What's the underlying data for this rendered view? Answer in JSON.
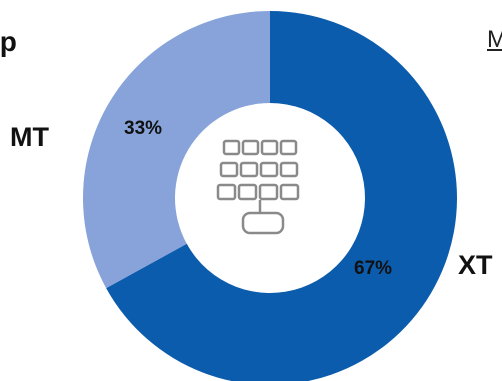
{
  "chart_data": {
    "type": "pie",
    "donut": true,
    "categories": [
      "XT",
      "MT"
    ],
    "values": [
      67,
      33
    ],
    "value_labels": [
      "67%",
      "33%"
    ],
    "colors": [
      "#0c5cad",
      "#87a3d9"
    ],
    "center_icon": "solar-panel-icon",
    "title": "",
    "legend": "none"
  },
  "cut_text": {
    "left": "/p",
    "right": "M"
  }
}
